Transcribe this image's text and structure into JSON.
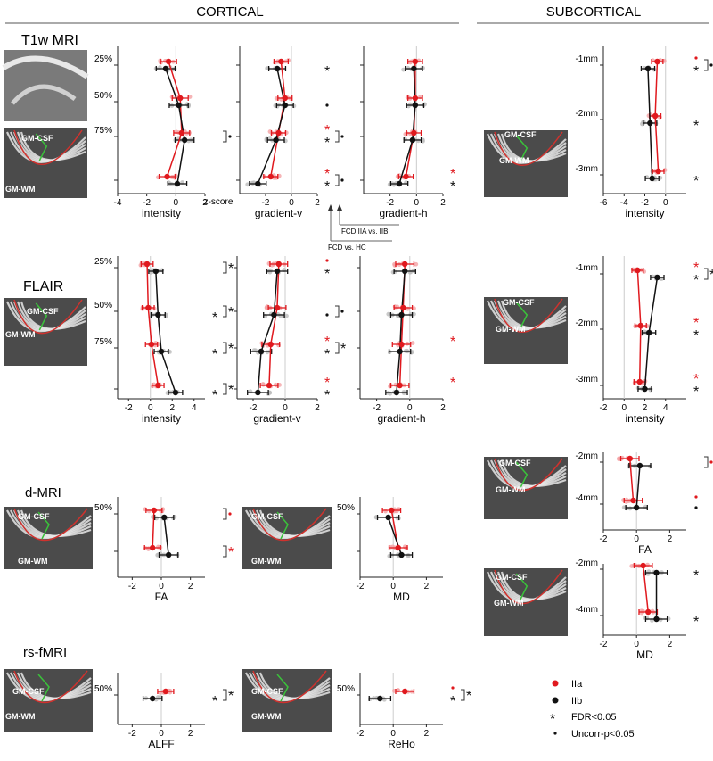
{
  "header": {
    "cortical": "CORTICAL",
    "subcortical": "SUBCORTICAL"
  },
  "modalities": {
    "t1": "T1w MRI",
    "flair": "FLAIR",
    "dmri": "d-MRI",
    "rsfmri": "rs-fMRI"
  },
  "img_labels": {
    "gmcsf": "GM-CSF",
    "gmwm": "GM-WM"
  },
  "zscore_label": "z-score",
  "comparisons": {
    "iia_iib": "FCD IIA vs. IIB",
    "vs_hc": "FCD vs. HC"
  },
  "legend": {
    "iia": "IIa",
    "iib": "IIb",
    "fdr": "FDR<0.05",
    "uncorr": "Uncorr-p<0.05"
  },
  "colors": {
    "iia": "#e0191e",
    "iib": "#111111",
    "dots_iia": "#f4a3a5",
    "dots_iib": "#bdbdbd"
  },
  "chart_data": [
    {
      "id": "t1_intensity",
      "type": "scatter",
      "xlabel": "intensity",
      "xlim": [
        -4,
        2
      ],
      "xticks": [
        "-4",
        "-2",
        "0",
        "2"
      ],
      "levels": [
        "25%",
        "50%",
        "75%",
        ""
      ],
      "iia": [
        -0.5,
        0.3,
        0.4,
        -0.6
      ],
      "iib": [
        -0.7,
        0.2,
        0.6,
        0.1
      ],
      "sig_hc": [
        "",
        "",
        "",
        ""
      ],
      "sig_ab": [
        "",
        "",
        "dot",
        ""
      ]
    },
    {
      "id": "t1_gradv",
      "type": "scatter",
      "xlabel": "gradient-v",
      "xlim": [
        -4,
        2
      ],
      "xticks": [
        "-2",
        "0",
        "2"
      ],
      "levels": [
        "",
        "",
        "",
        ""
      ],
      "iia": [
        -0.8,
        -0.5,
        -1.0,
        -1.6
      ],
      "iib": [
        -1.1,
        -0.5,
        -1.2,
        -2.6
      ],
      "sig_hc": [
        "bs",
        "bd",
        "rs+bs",
        "rs+bs"
      ],
      "sig_ab": [
        "",
        "",
        "dot",
        "dot"
      ]
    },
    {
      "id": "t1_gradh",
      "type": "scatter",
      "xlabel": "gradient-h",
      "xlim": [
        -4,
        2
      ],
      "xticks": [
        "-2",
        "0",
        "2"
      ],
      "levels": [
        "",
        "",
        "",
        ""
      ],
      "iia": [
        -0.1,
        -0.1,
        -0.2,
        -0.8
      ],
      "iib": [
        -0.2,
        -0.1,
        -0.3,
        -1.3
      ],
      "sig_hc": [
        "",
        "",
        "",
        "rs+bs"
      ],
      "sig_ab": [
        "",
        "",
        "",
        ""
      ]
    },
    {
      "id": "fl_intensity",
      "type": "scatter",
      "xlabel": "intensity",
      "xlim": [
        -3,
        5
      ],
      "xticks": [
        "-2",
        "0",
        "2",
        "4"
      ],
      "levels": [
        "25%",
        "50%",
        "75%",
        ""
      ],
      "iia": [
        -0.3,
        -0.2,
        0.1,
        0.7
      ],
      "iib": [
        0.5,
        0.7,
        1.0,
        2.3
      ],
      "sig_hc": [
        "",
        "bs",
        "bs",
        "bs"
      ],
      "sig_ab": [
        "star",
        "star",
        "star",
        "star"
      ]
    },
    {
      "id": "fl_gradv",
      "type": "scatter",
      "xlabel": "gradient-v",
      "xlim": [
        -3,
        2
      ],
      "xticks": [
        "-2",
        "0",
        "2"
      ],
      "levels": [
        "",
        "",
        "",
        ""
      ],
      "iia": [
        -0.4,
        -0.5,
        -0.9,
        -1.0
      ],
      "iib": [
        -0.5,
        -0.7,
        -1.5,
        -1.7
      ],
      "sig_hc": [
        "rd+bs",
        "bd",
        "rs+bs",
        "rs+bs"
      ],
      "sig_ab": [
        "",
        "dot",
        "star",
        ""
      ]
    },
    {
      "id": "fl_gradh",
      "type": "scatter",
      "xlabel": "gradient-h",
      "xlim": [
        -3,
        2
      ],
      "xticks": [
        "-2",
        "0",
        "2"
      ],
      "levels": [
        "",
        "",
        "",
        ""
      ],
      "iia": [
        -0.3,
        -0.4,
        -0.5,
        -0.6
      ],
      "iib": [
        -0.3,
        -0.5,
        -0.6,
        -0.8
      ],
      "sig_hc": [
        "",
        "",
        "rs",
        "rs"
      ],
      "sig_ab": [
        "",
        "",
        "",
        ""
      ]
    },
    {
      "id": "dm_fa",
      "type": "scatter",
      "xlabel": "FA",
      "xlim": [
        -3,
        3
      ],
      "xticks": [
        "-2",
        "0",
        "2"
      ],
      "levels": [
        "50%",
        ""
      ],
      "iia": [
        -0.5,
        -0.6
      ],
      "iib": [
        0.2,
        0.5
      ],
      "sig_hc": [
        "",
        ""
      ],
      "sig_ab": [
        "rdot",
        "rstar"
      ]
    },
    {
      "id": "dm_md",
      "type": "scatter",
      "xlabel": "MD",
      "xlim": [
        -2,
        3
      ],
      "xticks": [
        "-2",
        "0",
        "2"
      ],
      "levels": [
        "50%",
        ""
      ],
      "iia": [
        -0.1,
        0.3
      ],
      "iib": [
        -0.3,
        0.5
      ],
      "sig_hc": [
        "",
        ""
      ],
      "sig_ab": [
        "",
        ""
      ]
    },
    {
      "id": "rs_alff",
      "type": "scatter",
      "xlabel": "ALFF",
      "xlim": [
        -3,
        3
      ],
      "xticks": [
        "-2",
        "0",
        "2"
      ],
      "levels": [
        "50%"
      ],
      "iia": [
        0.3
      ],
      "iib": [
        -0.6
      ],
      "sig_hc": [
        "bs"
      ],
      "sig_ab": [
        "star"
      ]
    },
    {
      "id": "rs_reho",
      "type": "scatter",
      "xlabel": "ReHo",
      "xlim": [
        -2,
        3
      ],
      "xticks": [
        "-2",
        "0",
        "2"
      ],
      "levels": [
        "50%"
      ],
      "iia": [
        0.7
      ],
      "iib": [
        -0.8
      ],
      "sig_hc": [
        "rd+bs"
      ],
      "sig_ab": [
        "star"
      ]
    },
    {
      "id": "sub_t1",
      "type": "scatter",
      "xlabel": "intensity",
      "xlim": [
        -6,
        2
      ],
      "xticks": [
        "-6",
        "-4",
        "-2",
        "0"
      ],
      "levels": [
        "-1mm",
        "-2mm",
        "-3mm"
      ],
      "iia": [
        -0.8,
        -1.0,
        -0.7
      ],
      "iib": [
        -1.7,
        -1.5,
        -1.3
      ],
      "sig_hc": [
        "rd+bs",
        "bs",
        "bs"
      ],
      "sig_ab": [
        "dot",
        "",
        ""
      ]
    },
    {
      "id": "sub_flair",
      "type": "scatter",
      "xlabel": "intensity",
      "xlim": [
        -2,
        6
      ],
      "xticks": [
        "-2",
        "0",
        "2",
        "4"
      ],
      "levels": [
        "-1mm",
        "-2mm",
        "-3mm"
      ],
      "iia": [
        1.3,
        1.6,
        1.5
      ],
      "iib": [
        3.2,
        2.4,
        2.0
      ],
      "sig_hc": [
        "rs+bs",
        "rs+bs",
        "rs+bs"
      ],
      "sig_ab": [
        "star",
        "",
        ""
      ]
    },
    {
      "id": "sub_fa",
      "type": "scatter",
      "xlabel": "FA",
      "xlim": [
        -2,
        3
      ],
      "xticks": [
        "-2",
        "0",
        "2"
      ],
      "levels": [
        "-2mm",
        "-4mm"
      ],
      "iia": [
        -0.4,
        -0.2
      ],
      "iib": [
        0.2,
        0.0
      ],
      "sig_hc": [
        "",
        "rd+bd"
      ],
      "sig_ab": [
        "rdot",
        ""
      ]
    },
    {
      "id": "sub_md",
      "type": "scatter",
      "xlabel": "MD",
      "xlim": [
        -2,
        3
      ],
      "xticks": [
        "-2",
        "0",
        "2"
      ],
      "levels": [
        "-2mm",
        "-4mm"
      ],
      "iia": [
        0.4,
        0.7
      ],
      "iib": [
        1.2,
        1.2
      ],
      "sig_hc": [
        "bs",
        "bs"
      ],
      "sig_ab": [
        "",
        ""
      ]
    }
  ]
}
